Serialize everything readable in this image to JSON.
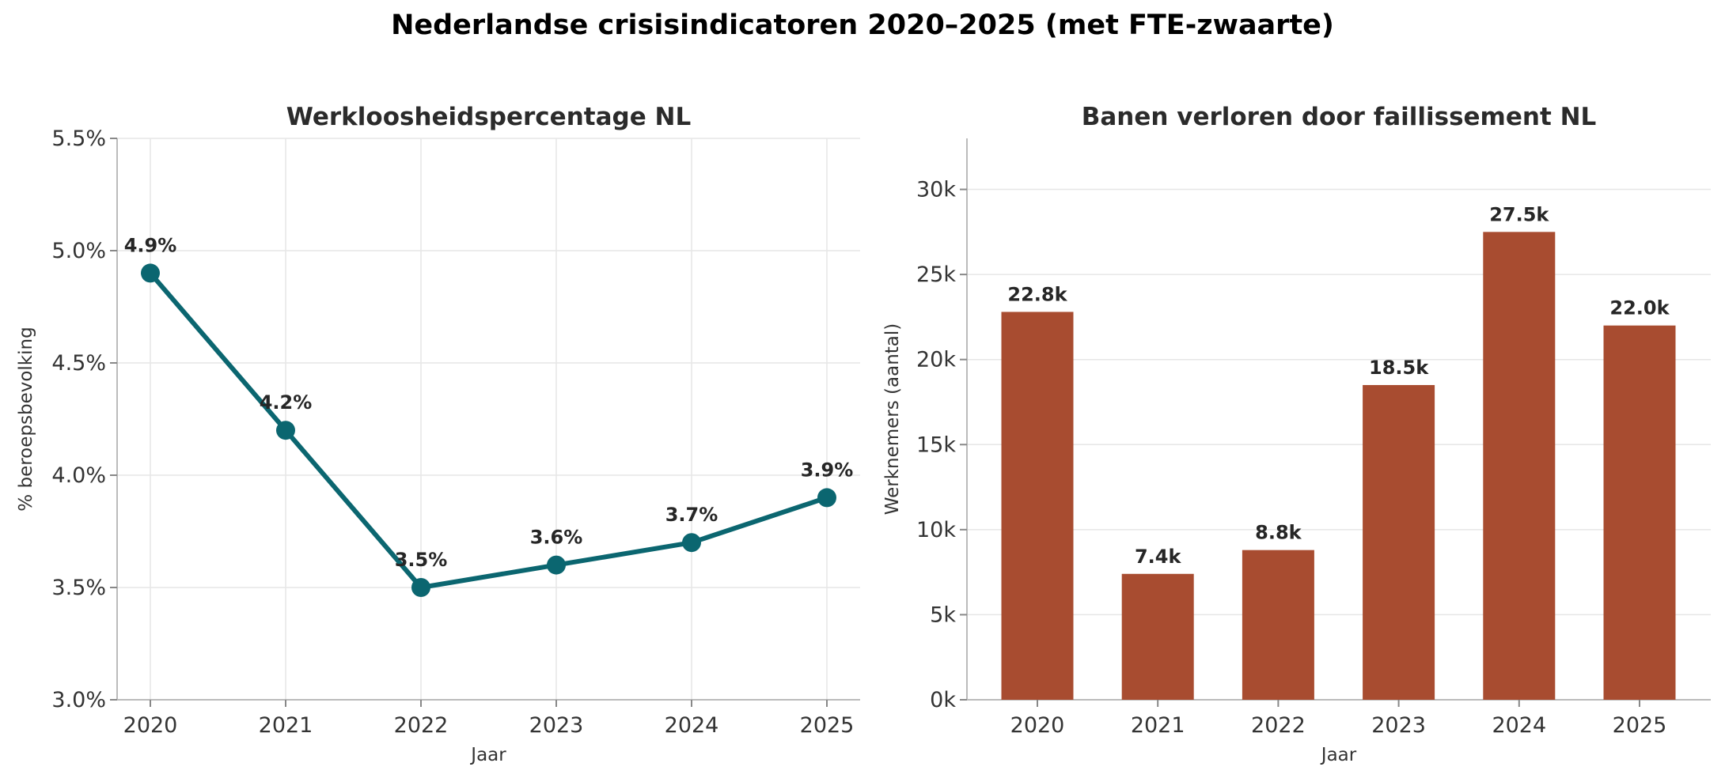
{
  "title": "Nederlandse crisisindicatoren 2020–2025 (met FTE-zwaarte)",
  "chart_data": [
    {
      "type": "line",
      "title": "Werkloosheidspercentage NL",
      "xlabel": "Jaar",
      "ylabel": "% beroepsbevolking",
      "x": [
        "2020",
        "2021",
        "2022",
        "2023",
        "2024",
        "2025"
      ],
      "values": [
        4.9,
        4.2,
        3.5,
        3.6,
        3.7,
        3.9
      ],
      "data_labels": [
        "4.9%",
        "4.2%",
        "3.5%",
        "3.6%",
        "3.7%",
        "3.9%"
      ],
      "ylim": [
        3.0,
        5.5
      ],
      "yticks": [
        3.0,
        3.5,
        4.0,
        4.5,
        5.0,
        5.5
      ],
      "ytick_labels": [
        "3.0%",
        "3.5%",
        "4.0%",
        "4.5%",
        "5.0%",
        "5.5%"
      ],
      "grid": true,
      "color": "#0b6670"
    },
    {
      "type": "bar",
      "title": "Banen verloren door faillissement NL",
      "xlabel": "Jaar",
      "ylabel": "Werknemers (aantal)",
      "categories": [
        "2020",
        "2021",
        "2022",
        "2023",
        "2024",
        "2025"
      ],
      "values": [
        22800,
        7400,
        8800,
        18500,
        27500,
        22000
      ],
      "data_labels": [
        "22.8k",
        "7.4k",
        "8.8k",
        "18.5k",
        "27.5k",
        "22.0k"
      ],
      "ylim": [
        0,
        33000
      ],
      "yticks": [
        0,
        5000,
        10000,
        15000,
        20000,
        25000,
        30000
      ],
      "ytick_labels": [
        "0k",
        "5k",
        "10k",
        "15k",
        "20k",
        "25k",
        "30k"
      ],
      "grid": true,
      "color": "#a84c30"
    }
  ]
}
